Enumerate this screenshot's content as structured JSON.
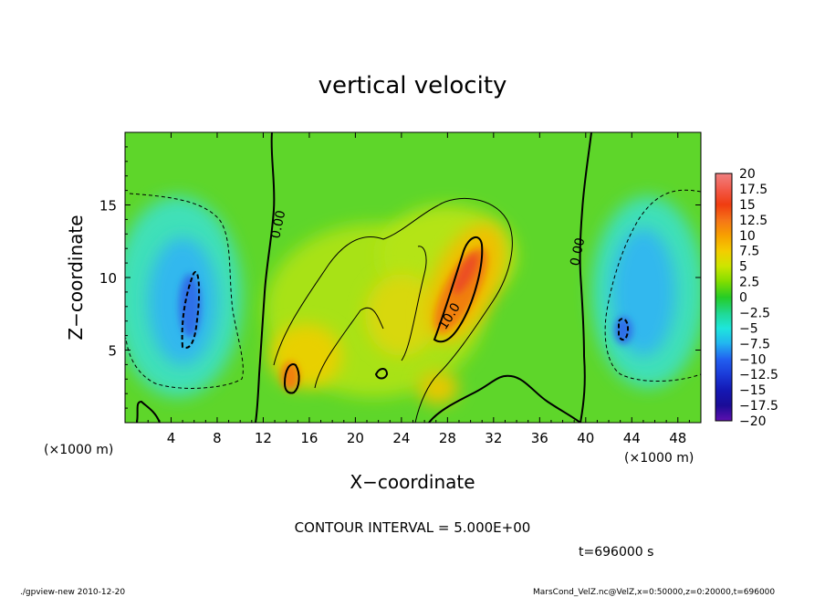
{
  "chart_data": {
    "type": "heatmap",
    "title": "vertical velocity",
    "xlabel": "X−coordinate",
    "ylabel": "Z−coordinate",
    "x_unit": "(×1000 m)",
    "xlim": [
      0,
      50
    ],
    "ylim": [
      0,
      20
    ],
    "x_ticks": [
      "4",
      "8",
      "12",
      "16",
      "20",
      "24",
      "28",
      "32",
      "36",
      "40",
      "44",
      "48"
    ],
    "y_ticks": [
      "5",
      "10",
      "15"
    ],
    "colorbar": {
      "labels": [
        "20",
        "17.5",
        "15",
        "12.5",
        "10",
        "7.5",
        "5",
        "2.5",
        "0",
        "−2.5",
        "−5",
        "−7.5",
        "−10",
        "−12.5",
        "−15",
        "−17.5",
        "−20"
      ],
      "colors": [
        "#f08080",
        "#f25a4a",
        "#f03c10",
        "#f57418",
        "#f7a000",
        "#f4cd00",
        "#cce600",
        "#80dd00",
        "#25cc25",
        "#20d890",
        "#1ee6dc",
        "#22b4f0",
        "#2260f0",
        "#1a3ad8",
        "#1418b4",
        "#1a0c96",
        "#6010b0"
      ]
    },
    "contour_labels": [
      "0.00",
      "0.00",
      "10.0"
    ],
    "annotations": {
      "contour_interval": "CONTOUR INTERVAL = 5.000E+00",
      "time": "t=696000 s",
      "footer_left": "./gpview-new  2010-12-20",
      "footer_right": "MarsCond_VelZ.nc@VelZ,x=0:50000,z=0:20000,t=696000"
    },
    "features": [
      {
        "kind": "updraft-max",
        "x": 29.5,
        "z": 9.5,
        "value": 12
      },
      {
        "kind": "updraft",
        "x": 14.5,
        "z": 3.2,
        "value": 10
      },
      {
        "kind": "downdraft-min",
        "x": 5.5,
        "z": 8,
        "value": -11
      },
      {
        "kind": "downdraft-min",
        "x": 43.5,
        "z": 6.3,
        "value": -11
      }
    ]
  }
}
